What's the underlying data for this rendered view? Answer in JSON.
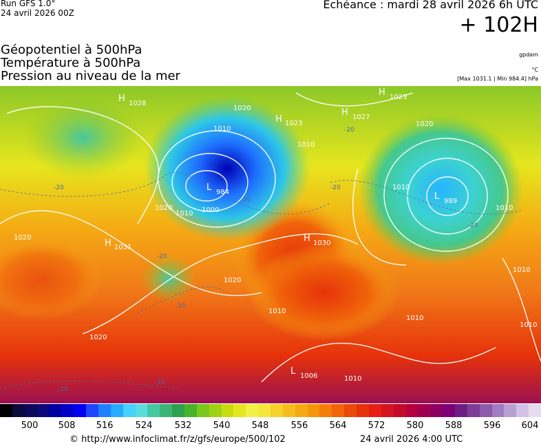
{
  "header": {
    "run": "Run GFS 1.0°",
    "run_date": "24 avril 2026 00Z",
    "echeance": "Echéance : mardi 28 avril 2026 6h UTC",
    "lead": "+ 102H"
  },
  "fields": [
    "Géopotentiel à 500hPa",
    "Température à 500hPa",
    "Pression au niveau de la mer"
  ],
  "units": {
    "geopotential": "gpdam",
    "temperature": "°C",
    "pressure": "[Max 1031.1 | Min 984.4] hPa"
  },
  "colorbar": {
    "ticks": [
      "500",
      "508",
      "516",
      "524",
      "532",
      "540",
      "548",
      "556",
      "564",
      "572",
      "580",
      "588",
      "596",
      "604"
    ],
    "colors": [
      "#000000",
      "#0a0a3c",
      "#0a0a5a",
      "#0a0a78",
      "#0000a0",
      "#0000c8",
      "#0000f0",
      "#1e46ff",
      "#1e82ff",
      "#28aaff",
      "#46d2ff",
      "#5adcdc",
      "#46c8a0",
      "#3cb478",
      "#2ea050",
      "#46b428",
      "#78c81e",
      "#a0d214",
      "#c8dc14",
      "#e6e61e",
      "#f0f046",
      "#f5e63c",
      "#f5d228",
      "#f5be1e",
      "#f5aa14",
      "#f5960a",
      "#f57d0a",
      "#f0640a",
      "#eb4b0a",
      "#e6320a",
      "#e61e14",
      "#d2141e",
      "#c30a28",
      "#b4003c",
      "#a00050",
      "#8c0064",
      "#7d0078",
      "#6e1e82",
      "#7d3c96",
      "#8c5aaa",
      "#a07dbe",
      "#b9a0d2",
      "#d2c3e6",
      "#e6dcf0"
    ]
  },
  "pressure_centers": [
    {
      "type": "H",
      "value": "1028"
    },
    {
      "type": "H",
      "value": "1023"
    },
    {
      "type": "H",
      "value": "1023"
    },
    {
      "type": "H",
      "value": "1027"
    },
    {
      "type": "L",
      "value": "984"
    },
    {
      "type": "L",
      "value": "989"
    },
    {
      "type": "H",
      "value": "1031"
    },
    {
      "type": "H",
      "value": "1030"
    },
    {
      "type": "L",
      "value": "1006"
    }
  ],
  "isobar_labels": [
    "1000",
    "1010",
    "1010",
    "1020",
    "1020",
    "1020",
    "1020",
    "1020",
    "1020",
    "1010",
    "1010",
    "1010",
    "1010",
    "1010",
    "1010",
    "1010",
    "1010"
  ],
  "isotherm_labels": [
    "-20",
    "-20",
    "-20",
    "-20",
    "-20",
    "-20",
    "-20",
    "-10",
    "-10"
  ],
  "footer": {
    "copyright": "© http://www.infoclimat.fr/z/gfs/europe/500/102",
    "valid": "24 avril 2026  4:00 UTC"
  }
}
